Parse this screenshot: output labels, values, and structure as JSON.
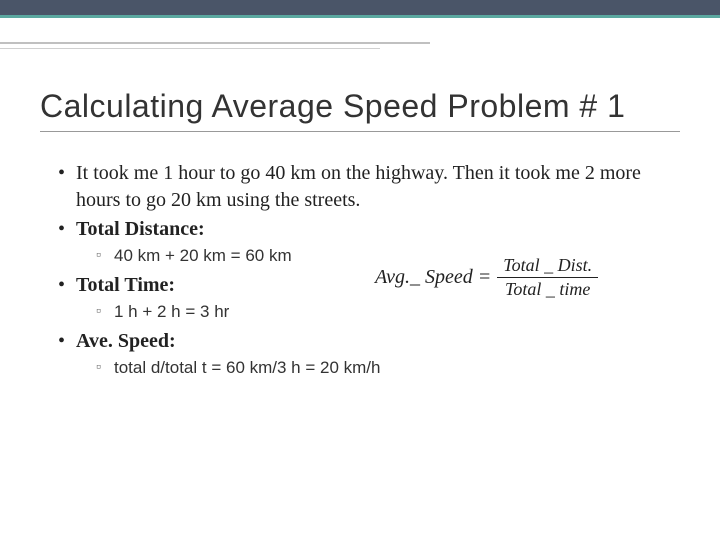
{
  "slide": {
    "title": "Calculating Average Speed Problem # 1",
    "bullets": {
      "problem": "It took me 1 hour to go 40 km on the highway. Then it took me 2 more hours to go 20 km using the streets.",
      "total_distance_label": "Total Distance:",
      "total_distance_calc": "40 km + 20 km = 60 km",
      "total_time_label": "Total Time:",
      "total_time_calc": "1 h + 2 h = 3 hr",
      "ave_speed_label": "Ave. Speed:",
      "ave_speed_calc": "total d/total t = 60 km/3 h = 20 km/h"
    },
    "formula": {
      "lhs": "Avg._ Speed =",
      "numerator": "Total _ Dist.",
      "denominator": "Total _ time"
    }
  },
  "style": {
    "top_bar_color": "#4a5568",
    "accent_color": "#5ba8a0",
    "title_fontsize": 32,
    "body_fontsize": 20,
    "sub_fontsize": 17,
    "background": "#ffffff"
  }
}
